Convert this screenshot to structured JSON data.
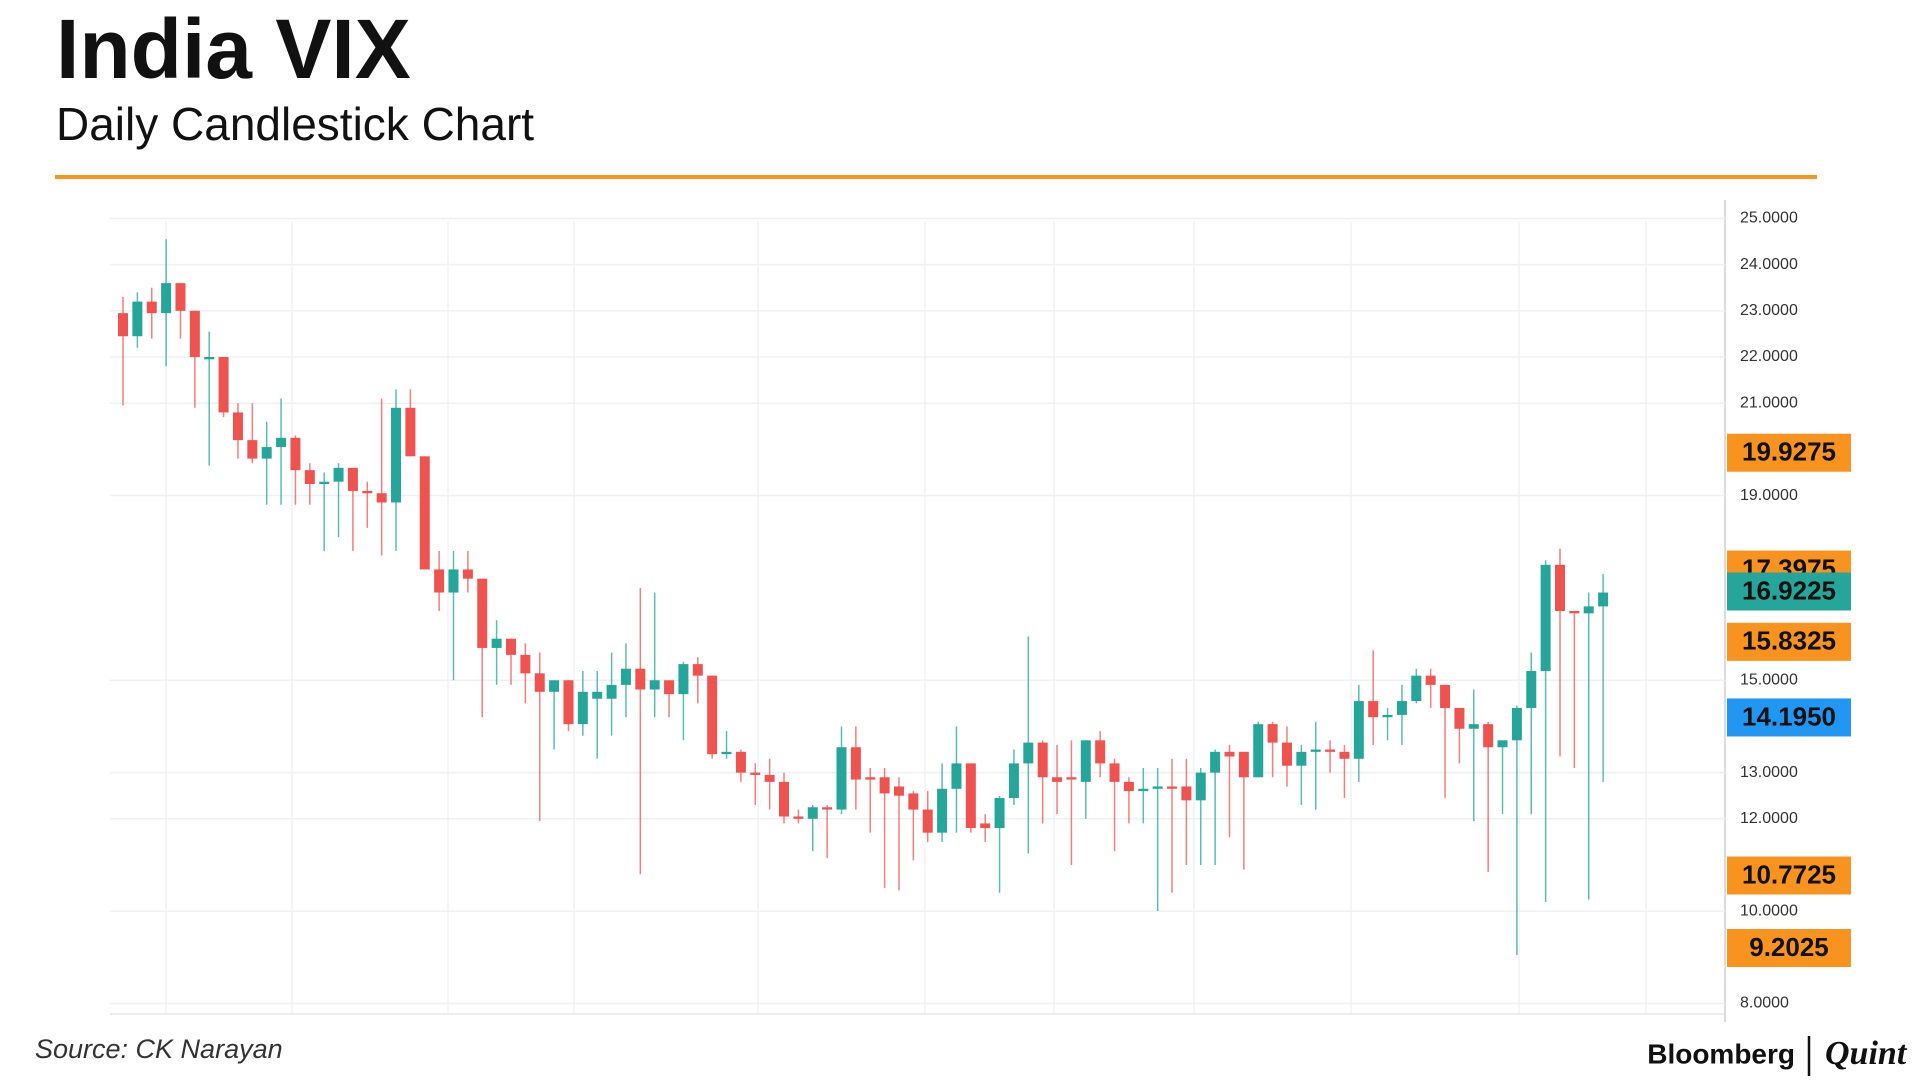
{
  "chart_data": {
    "type": "candlestick",
    "title": "India VIX",
    "subtitle": "Daily Candlestick Chart",
    "source": "Source: CK Narayan",
    "brand": [
      "Bloomberg",
      "Quint"
    ],
    "up_color": "#26a69a",
    "down_color": "#ef5350",
    "grid": true,
    "ylim": [
      7.6,
      25.4
    ],
    "yticks": [
      {
        "value": 8,
        "label": "8.0000"
      },
      {
        "value": 10,
        "label": "10.0000"
      },
      {
        "value": 12,
        "label": "12.0000"
      },
      {
        "value": 13,
        "label": "13.0000"
      },
      {
        "value": 15,
        "label": "15.0000"
      },
      {
        "value": 19,
        "label": "19.0000"
      },
      {
        "value": 21,
        "label": "21.0000"
      },
      {
        "value": 22,
        "label": "22.0000"
      },
      {
        "value": 23,
        "label": "23.0000"
      },
      {
        "value": 24,
        "label": "24.0000"
      },
      {
        "value": 25,
        "label": "25.0000"
      }
    ],
    "price_labels": [
      {
        "value": 19.9275,
        "label": "19.9275",
        "color": "#f7931e"
      },
      {
        "value": 17.3975,
        "label": "17.3975",
        "color": "#f7931e"
      },
      {
        "value": 16.9225,
        "label": "16.9225",
        "color": "#26a69a"
      },
      {
        "value": 15.8325,
        "label": "15.8325",
        "color": "#f7931e"
      },
      {
        "value": 14.195,
        "label": "14.1950",
        "color": "#2196f3"
      },
      {
        "value": 10.7725,
        "label": "10.7725",
        "color": "#f7931e"
      },
      {
        "value": 9.2025,
        "label": "9.2025",
        "color": "#f7931e"
      }
    ],
    "open": [
      22.95,
      22.45,
      23.2,
      22.95,
      23.6,
      23.0,
      21.95,
      22.0,
      20.8,
      20.2,
      19.8,
      20.05,
      20.25,
      19.55,
      19.25,
      19.3,
      19.6,
      19.1,
      19.05,
      18.85,
      20.9,
      19.85,
      17.4,
      16.9,
      17.4,
      17.2,
      15.7,
      15.9,
      15.55,
      15.15,
      14.75,
      15.0,
      14.05,
      14.6,
      14.6,
      14.9,
      15.25,
      14.8,
      15.0,
      14.7,
      15.35,
      15.1,
      13.4,
      13.45,
      13.0,
      12.95,
      12.8,
      12.05,
      12.0,
      12.25,
      12.2,
      13.55,
      12.9,
      12.9,
      12.7,
      12.55,
      12.2,
      11.7,
      12.65,
      13.2,
      11.9,
      11.8,
      12.45,
      13.2,
      13.65,
      12.9,
      12.9,
      12.8,
      13.7,
      13.2,
      12.8,
      12.6,
      12.65,
      12.7,
      12.7,
      12.4,
      13.0,
      13.45,
      13.45,
      12.9,
      14.05,
      13.65,
      13.15,
      13.45,
      13.5,
      13.45,
      13.3,
      14.55,
      14.2,
      14.25,
      14.55,
      15.1,
      14.9,
      14.4,
      13.95,
      14.05,
      13.55,
      13.7,
      14.4,
      15.2,
      17.5,
      16.5,
      16.45,
      16.6
    ],
    "high": [
      23.3,
      23.4,
      23.5,
      24.55,
      23.6,
      23.0,
      22.55,
      22.0,
      21.0,
      21.0,
      20.6,
      21.1,
      20.3,
      19.7,
      19.5,
      19.7,
      19.6,
      19.3,
      21.1,
      21.3,
      21.3,
      19.85,
      17.8,
      17.8,
      17.8,
      17.2,
      16.3,
      15.9,
      15.8,
      15.6,
      15.0,
      15.0,
      15.2,
      15.2,
      15.6,
      15.8,
      17.0,
      16.9,
      15.0,
      15.4,
      15.5,
      15.1,
      13.9,
      13.5,
      13.2,
      13.3,
      13.0,
      12.2,
      12.3,
      12.3,
      14.0,
      14.0,
      13.1,
      13.1,
      12.9,
      12.6,
      12.6,
      13.2,
      14.0,
      13.2,
      12.1,
      12.5,
      13.5,
      15.95,
      13.7,
      13.6,
      13.7,
      13.7,
      13.9,
      13.3,
      12.9,
      13.1,
      13.1,
      13.3,
      13.3,
      13.1,
      13.5,
      13.6,
      13.45,
      14.1,
      14.1,
      14.0,
      13.6,
      14.1,
      13.7,
      13.6,
      14.9,
      15.65,
      14.4,
      14.9,
      15.25,
      15.25,
      14.9,
      14.4,
      14.8,
      14.1,
      13.7,
      14.45,
      15.6,
      17.6,
      17.85,
      16.5,
      16.9,
      17.3
    ],
    "low": [
      20.95,
      22.2,
      22.4,
      21.8,
      22.4,
      20.9,
      19.65,
      20.7,
      19.8,
      19.7,
      18.8,
      18.8,
      18.8,
      18.8,
      17.8,
      18.1,
      17.8,
      18.3,
      17.7,
      17.8,
      19.85,
      17.4,
      16.5,
      15.0,
      16.9,
      14.2,
      14.9,
      14.9,
      14.5,
      11.95,
      13.5,
      13.9,
      13.8,
      13.3,
      13.8,
      14.2,
      10.8,
      14.2,
      14.2,
      13.7,
      14.5,
      13.3,
      13.3,
      12.8,
      12.3,
      12.2,
      11.9,
      11.9,
      11.3,
      11.15,
      12.1,
      12.2,
      11.7,
      10.5,
      10.45,
      11.1,
      11.5,
      11.5,
      11.7,
      11.7,
      11.5,
      10.4,
      12.3,
      11.25,
      11.9,
      12.1,
      11.0,
      12.0,
      12.9,
      11.3,
      11.9,
      11.9,
      10.0,
      10.4,
      11.0,
      11.0,
      11.0,
      11.6,
      10.9,
      12.9,
      12.9,
      12.7,
      12.3,
      12.2,
      13.0,
      12.45,
      12.8,
      13.6,
      13.7,
      13.6,
      14.5,
      14.4,
      12.45,
      13.2,
      11.95,
      10.85,
      12.1,
      9.05,
      12.1,
      10.2,
      13.35,
      13.1,
      10.25,
      12.8
    ],
    "close": [
      22.45,
      23.2,
      22.95,
      23.6,
      23.0,
      22.0,
      22.0,
      20.8,
      20.2,
      19.8,
      20.05,
      20.25,
      19.55,
      19.25,
      19.3,
      19.6,
      19.1,
      19.05,
      18.85,
      20.9,
      19.85,
      17.4,
      16.9,
      17.4,
      17.2,
      15.7,
      15.9,
      15.55,
      15.15,
      14.75,
      15.0,
      14.05,
      14.75,
      14.75,
      14.9,
      15.25,
      14.8,
      15.0,
      14.7,
      15.35,
      15.1,
      13.4,
      13.45,
      13.0,
      12.95,
      12.8,
      12.05,
      12.0,
      12.25,
      12.2,
      13.55,
      12.85,
      12.85,
      12.55,
      12.5,
      12.2,
      11.7,
      12.65,
      13.2,
      11.8,
      11.8,
      12.45,
      13.2,
      13.65,
      12.9,
      12.8,
      12.85,
      13.7,
      13.2,
      12.8,
      12.6,
      12.65,
      12.7,
      12.65,
      12.4,
      13.0,
      13.45,
      13.35,
      12.9,
      14.05,
      13.65,
      13.15,
      13.45,
      13.5,
      13.45,
      13.3,
      14.55,
      14.2,
      14.25,
      14.55,
      15.1,
      14.9,
      14.4,
      13.95,
      14.05,
      13.55,
      13.7,
      14.4,
      15.2,
      17.5,
      16.5,
      16.45,
      16.6,
      16.9
    ]
  }
}
